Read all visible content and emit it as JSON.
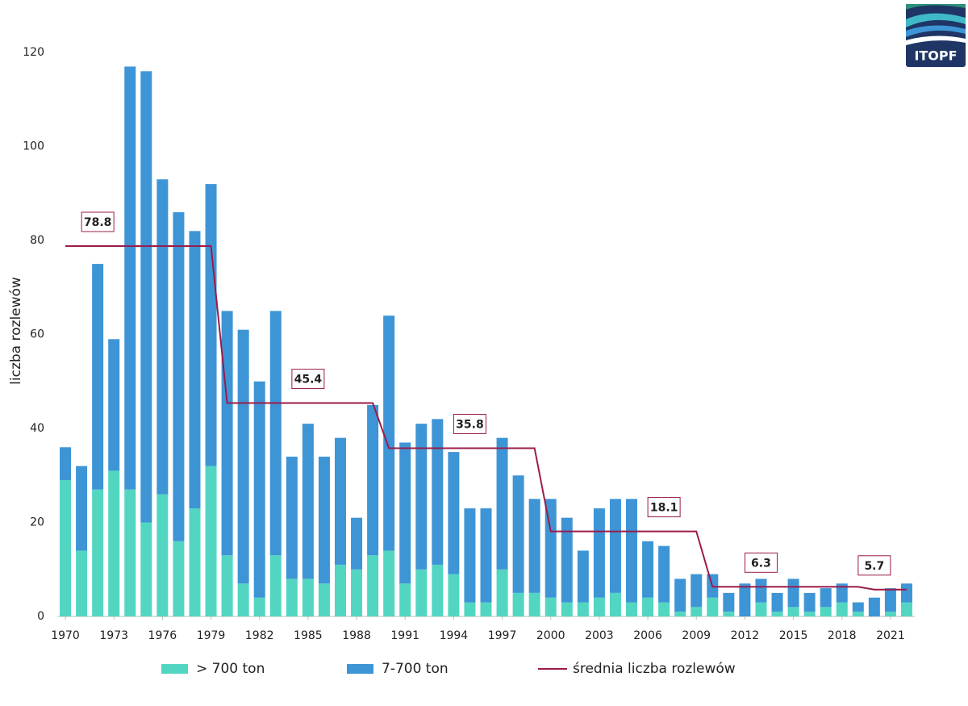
{
  "logo_text": "ITOPF",
  "chart_data": {
    "type": "bar",
    "stacked": true,
    "y_label": "liczba rozlewów",
    "x": [
      1970,
      1971,
      1972,
      1973,
      1974,
      1975,
      1976,
      1977,
      1978,
      1979,
      1980,
      1981,
      1982,
      1983,
      1984,
      1985,
      1986,
      1987,
      1988,
      1989,
      1990,
      1991,
      1992,
      1993,
      1994,
      1995,
      1996,
      1997,
      1998,
      1999,
      2000,
      2001,
      2002,
      2003,
      2004,
      2005,
      2006,
      2007,
      2008,
      2009,
      2010,
      2011,
      2012,
      2013,
      2014,
      2015,
      2016,
      2017,
      2018,
      2019,
      2020,
      2021,
      2022
    ],
    "xlim": [
      1969.5,
      2022.5
    ],
    "xticks": [
      1970,
      1973,
      1976,
      1979,
      1982,
      1985,
      1988,
      1991,
      1994,
      1997,
      2000,
      2003,
      2006,
      2009,
      2012,
      2015,
      2018,
      2021
    ],
    "ylim": [
      0,
      120
    ],
    "yticks": [
      0,
      20,
      40,
      60,
      80,
      100,
      120
    ],
    "grid": false,
    "series": [
      {
        "name": "> 700 ton",
        "color": "#52d6c2",
        "values": [
          29,
          14,
          27,
          31,
          27,
          20,
          26,
          16,
          23,
          32,
          13,
          7,
          4,
          13,
          8,
          8,
          7,
          11,
          10,
          13,
          14,
          7,
          10,
          11,
          9,
          3,
          3,
          10,
          5,
          5,
          4,
          3,
          3,
          4,
          5,
          3,
          4,
          3,
          1,
          2,
          4,
          1,
          0,
          3,
          1,
          2,
          1,
          2,
          3,
          1,
          0,
          1,
          3
        ]
      },
      {
        "name": "7-700 ton",
        "color": "#3d95d6",
        "values": [
          7,
          18,
          48,
          28,
          90,
          96,
          67,
          70,
          59,
          60,
          52,
          54,
          46,
          52,
          26,
          33,
          27,
          27,
          11,
          32,
          50,
          30,
          31,
          31,
          26,
          20,
          20,
          28,
          25,
          20,
          21,
          18,
          11,
          19,
          20,
          22,
          12,
          12,
          7,
          7,
          5,
          4,
          7,
          5,
          4,
          6,
          4,
          4,
          4,
          2,
          4,
          5,
          4
        ]
      },
      {
        "name": "średnia liczba rozlewów",
        "color": "#9b1b4b",
        "type": "line",
        "values": [
          78.8,
          78.8,
          78.8,
          78.8,
          78.8,
          78.8,
          78.8,
          78.8,
          78.8,
          78.8,
          45.4,
          45.4,
          45.4,
          45.4,
          45.4,
          45.4,
          45.4,
          45.4,
          45.4,
          45.4,
          35.8,
          35.8,
          35.8,
          35.8,
          35.8,
          35.8,
          35.8,
          35.8,
          35.8,
          35.8,
          18.1,
          18.1,
          18.1,
          18.1,
          18.1,
          18.1,
          18.1,
          18.1,
          18.1,
          18.1,
          6.3,
          6.3,
          6.3,
          6.3,
          6.3,
          6.3,
          6.3,
          6.3,
          6.3,
          6.3,
          5.7,
          5.7,
          5.7
        ],
        "value_labels": [
          null,
          null,
          "78.8",
          null,
          null,
          null,
          null,
          null,
          null,
          null,
          null,
          null,
          null,
          null,
          null,
          "45.4",
          null,
          null,
          null,
          null,
          null,
          null,
          null,
          null,
          null,
          "35.8",
          null,
          null,
          null,
          null,
          null,
          null,
          null,
          null,
          null,
          null,
          null,
          "18.1",
          null,
          null,
          null,
          null,
          null,
          "6.3",
          null,
          null,
          null,
          null,
          null,
          null,
          "5.7",
          null,
          null
        ]
      }
    ]
  }
}
